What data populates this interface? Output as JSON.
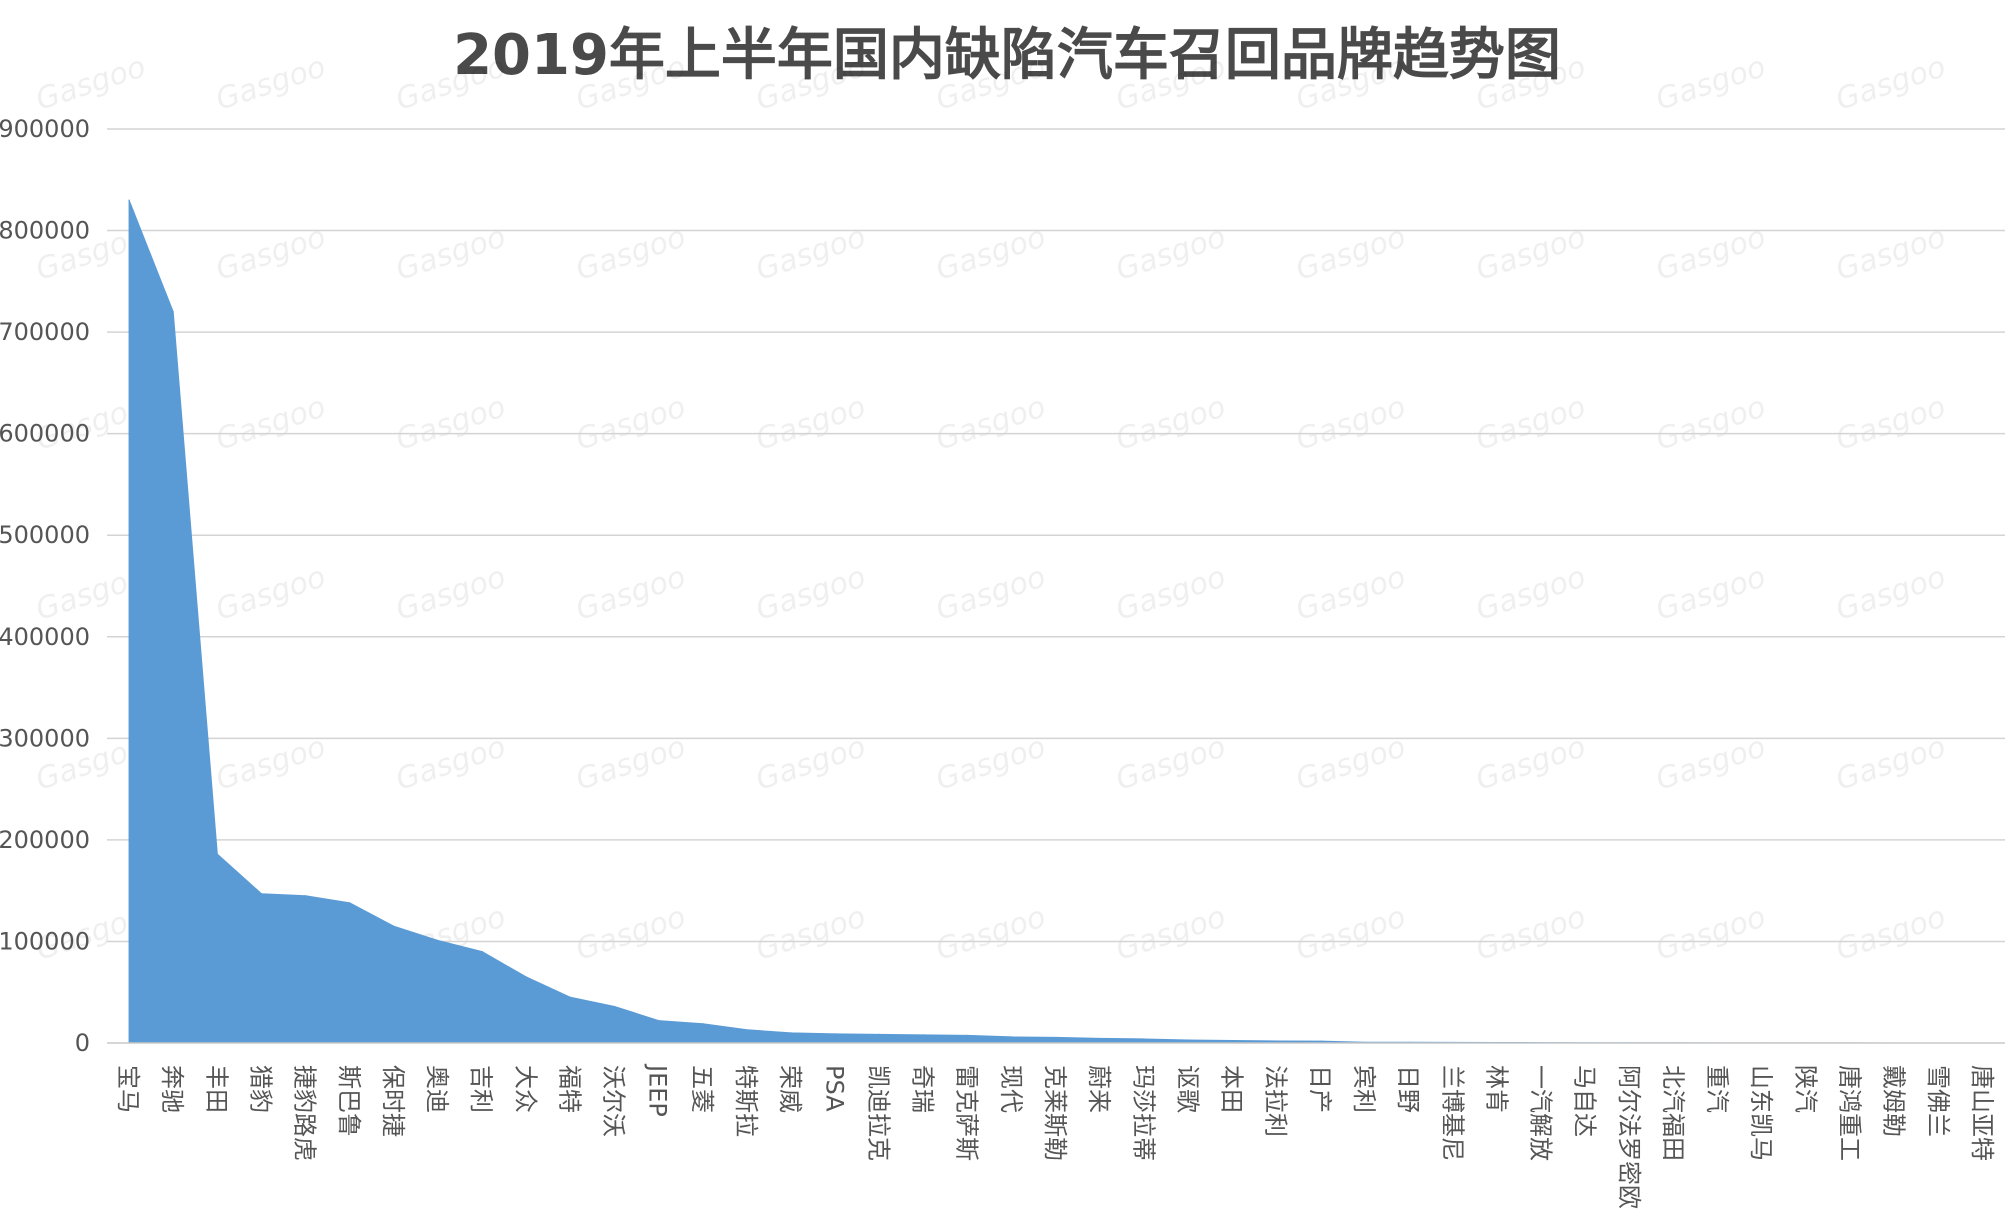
{
  "chart_data": {
    "type": "area",
    "title": "2019年上半年国内缺陷汽车召回品牌趋势图",
    "xlabel": "",
    "ylabel": "",
    "ylim": [
      0,
      900000
    ],
    "yticks": [
      0,
      100000,
      200000,
      300000,
      400000,
      500000,
      600000,
      700000,
      800000,
      900000
    ],
    "grid": true,
    "color": "#5b9bd5",
    "categories": [
      "宝马",
      "奔驰",
      "丰田",
      "猎豹",
      "捷豹路虎",
      "斯巴鲁",
      "保时捷",
      "奥迪",
      "吉利",
      "大众",
      "福特",
      "沃尔沃",
      "JEEP",
      "五菱",
      "特斯拉",
      "荣威",
      "PSA",
      "凯迪拉克",
      "奇瑞",
      "雷克萨斯",
      "现代",
      "克莱斯勒",
      "蔚来",
      "玛莎拉蒂",
      "讴歌",
      "本田",
      "法拉利",
      "日产",
      "宾利",
      "日野",
      "兰博基尼",
      "林肯",
      "一汽解放",
      "马自达",
      "阿尔法罗密欧",
      "北汽福田",
      "重汽",
      "山东凯马",
      "陕汽",
      "唐鸿重工",
      "戴姆勒",
      "雪佛兰",
      "唐山亚特"
    ],
    "values": [
      830000,
      720000,
      186000,
      147000,
      145000,
      138000,
      115000,
      101000,
      90000,
      65000,
      45000,
      36000,
      22000,
      19000,
      13000,
      10000,
      9000,
      8500,
      8000,
      7500,
      6000,
      5500,
      4500,
      4000,
      3000,
      2500,
      2000,
      1800,
      800,
      700,
      600,
      500,
      400,
      300,
      250,
      200,
      150,
      120,
      100,
      80,
      60,
      40,
      30
    ],
    "watermark": "Gasgoo"
  }
}
